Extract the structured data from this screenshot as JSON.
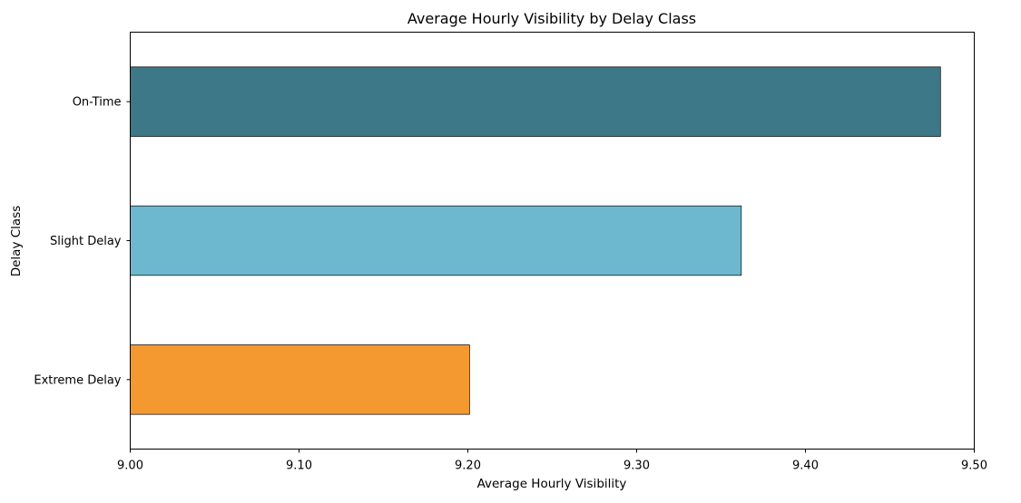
{
  "chart_data": {
    "type": "bar",
    "orientation": "horizontal",
    "title": "Average Hourly Visibility by Delay Class",
    "xlabel": "Average Hourly Visibility",
    "ylabel": "Delay Class",
    "categories": [
      "On-Time",
      "Slight Delay",
      "Extreme Delay"
    ],
    "values": [
      9.48,
      9.362,
      9.201
    ],
    "colors": [
      "#3d7889",
      "#6db8ce",
      "#f4992f"
    ],
    "xlim": [
      9.0,
      9.5
    ],
    "xticks": [
      9.0,
      9.1,
      9.2,
      9.3,
      9.4,
      9.5
    ],
    "xtick_labels": [
      "9.00",
      "9.10",
      "9.20",
      "9.30",
      "9.40",
      "9.50"
    ],
    "grid": false,
    "legend": null
  }
}
